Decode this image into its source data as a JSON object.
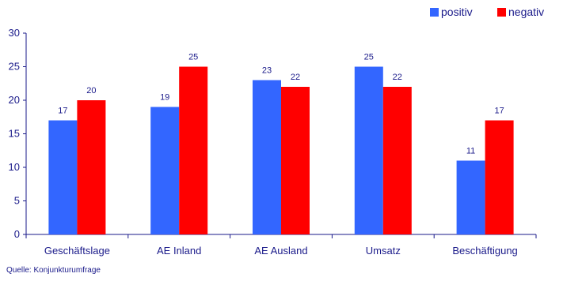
{
  "chart_data": {
    "type": "bar",
    "categories": [
      "Geschäftslage",
      "AE Inland",
      "AE Ausland",
      "Umsatz",
      "Beschäftigung"
    ],
    "series": [
      {
        "name": "positiv",
        "color": "#3366ff",
        "values": [
          17,
          19,
          23,
          25,
          11
        ]
      },
      {
        "name": "negativ",
        "color": "#ff0000",
        "values": [
          20,
          25,
          22,
          22,
          17
        ]
      }
    ],
    "ylim": [
      0,
      30
    ],
    "yticks": [
      0,
      5,
      10,
      15,
      20,
      25,
      30
    ],
    "grid": false,
    "legend": "top-right",
    "data_labels": true
  },
  "source": "Quelle: Konjunkturumfrage"
}
